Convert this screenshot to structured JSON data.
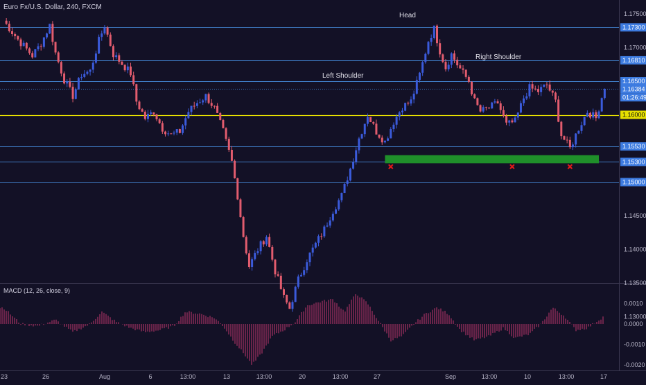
{
  "title": "Euro Fx/U.S. Dollar, 240, FXCM",
  "colors": {
    "background": "#131126",
    "bull": "#3b5bdb",
    "bear": "#e25c6e",
    "level_line": "#3f7bc4",
    "key_level": "#e6e000",
    "support_box": "#1f8f2a",
    "marker": "#e01a1a",
    "macd_hist": "#c2386d",
    "axis_text": "#b8b6c8",
    "price_tag": "#3d7be0"
  },
  "annotations": {
    "head": "Head",
    "left_shoulder": "Left Shoulder",
    "right_shoulder": "Right Shoulder"
  },
  "price_tags": {
    "current_price": "1.16384",
    "countdown": "01:26:49"
  },
  "macd_label": "MACD (12, 26, close, 9)",
  "chart_data": [
    {
      "type": "candlestick",
      "title": "Euro Fx/U.S. Dollar, 240, FXCM",
      "ylim": [
        1.1275,
        1.1765
      ],
      "y_ticks": [
        "1.17500",
        "1.17000",
        "1.16500",
        "1.16000",
        "1.15500",
        "1.15000",
        "1.14500",
        "1.14000",
        "1.13500",
        "1.13000"
      ],
      "x_ticks": [
        "23",
        "26",
        "Aug",
        "6",
        "13:00",
        "13",
        "13:00",
        "20",
        "13:00",
        "27",
        "Sep",
        "13:00",
        "10",
        "13:00",
        "17"
      ],
      "horizontal_levels": [
        {
          "value": 1.173,
          "label": "1.17300",
          "style": "solid"
        },
        {
          "value": 1.1681,
          "label": "1.16810",
          "style": "solid"
        },
        {
          "value": 1.165,
          "label": "1.16500",
          "style": "solid"
        },
        {
          "value": 1.16384,
          "label": "1.16384",
          "style": "dotted"
        },
        {
          "value": 1.16,
          "label": "1.16000",
          "style": "key"
        },
        {
          "value": 1.1553,
          "label": "1.15530",
          "style": "solid"
        },
        {
          "value": 1.153,
          "label": "1.15300",
          "style": "solid"
        },
        {
          "value": 1.15,
          "label": "1.15000",
          "style": "solid"
        }
      ],
      "support_zone": [
        1.1528,
        1.154
      ],
      "support_zone_x": [
        13.2,
        20.6
      ],
      "markers_x": [
        13.4,
        17.6,
        19.6
      ],
      "close_path": [
        [
          0,
          1.174
        ],
        [
          0.5,
          1.1712
        ],
        [
          1,
          1.1688
        ],
        [
          1.3,
          1.1706
        ],
        [
          1.6,
          1.1733
        ],
        [
          1.8,
          1.1692
        ],
        [
          2.1,
          1.1652
        ],
        [
          2.4,
          1.1628
        ],
        [
          2.7,
          1.166
        ],
        [
          3.0,
          1.1665
        ],
        [
          3.3,
          1.171
        ],
        [
          3.5,
          1.1733
        ],
        [
          3.8,
          1.169
        ],
        [
          4.1,
          1.1676
        ],
        [
          4.4,
          1.1662
        ],
        [
          4.6,
          1.162
        ],
        [
          4.9,
          1.1595
        ],
        [
          5.2,
          1.1605
        ],
        [
          5.5,
          1.158
        ],
        [
          5.8,
          1.157
        ],
        [
          6.1,
          1.1575
        ],
        [
          6.4,
          1.1605
        ],
        [
          6.7,
          1.1618
        ],
        [
          7.0,
          1.1628
        ],
        [
          7.3,
          1.161
        ],
        [
          7.6,
          1.1575
        ],
        [
          7.9,
          1.153
        ],
        [
          8.1,
          1.148
        ],
        [
          8.3,
          1.142
        ],
        [
          8.5,
          1.1375
        ],
        [
          8.8,
          1.14
        ],
        [
          9.1,
          1.142
        ],
        [
          9.4,
          1.1368
        ],
        [
          9.7,
          1.1328
        ],
        [
          9.9,
          1.1312
        ],
        [
          10.2,
          1.1355
        ],
        [
          10.5,
          1.1385
        ],
        [
          10.8,
          1.1408
        ],
        [
          11.1,
          1.143
        ],
        [
          11.4,
          1.1458
        ],
        [
          11.7,
          1.148
        ],
        [
          12.0,
          1.152
        ],
        [
          12.3,
          1.1565
        ],
        [
          12.6,
          1.16
        ],
        [
          12.9,
          1.1575
        ],
        [
          13.2,
          1.156
        ],
        [
          13.5,
          1.159
        ],
        [
          13.8,
          1.1612
        ],
        [
          14.1,
          1.162
        ],
        [
          14.4,
          1.166
        ],
        [
          14.7,
          1.171
        ],
        [
          14.9,
          1.1728
        ],
        [
          15.1,
          1.1695
        ],
        [
          15.3,
          1.167
        ],
        [
          15.5,
          1.169
        ],
        [
          15.7,
          1.1675
        ],
        [
          15.9,
          1.1662
        ],
        [
          16.1,
          1.165
        ],
        [
          16.3,
          1.162
        ],
        [
          16.5,
          1.1605
        ],
        [
          16.8,
          1.161
        ],
        [
          17.1,
          1.1618
        ],
        [
          17.4,
          1.1585
        ],
        [
          17.7,
          1.159
        ],
        [
          18.0,
          1.1625
        ],
        [
          18.2,
          1.164
        ],
        [
          18.5,
          1.1635
        ],
        [
          18.8,
          1.1645
        ],
        [
          19.1,
          1.162
        ],
        [
          19.3,
          1.157
        ],
        [
          19.6,
          1.155
        ],
        [
          19.9,
          1.158
        ],
        [
          20.2,
          1.1605
        ],
        [
          20.5,
          1.1595
        ],
        [
          20.8,
          1.1642
        ]
      ]
    },
    {
      "type": "bar",
      "title": "MACD (12, 26, close, 9)",
      "ylim": [
        -0.0022,
        0.0016
      ],
      "y_ticks": [
        "0.0010",
        "0.0000",
        "-0.0010",
        "-0.0020"
      ],
      "path": [
        [
          0,
          0.0008
        ],
        [
          0.6,
          0.0
        ],
        [
          1.2,
          -0.0001
        ],
        [
          1.8,
          0.0002
        ],
        [
          2.4,
          -0.0004
        ],
        [
          3.0,
          0.0
        ],
        [
          3.4,
          0.0006
        ],
        [
          3.9,
          0.0001
        ],
        [
          4.4,
          -0.0002
        ],
        [
          4.9,
          -0.0004
        ],
        [
          5.4,
          -0.0003
        ],
        [
          5.9,
          -0.0001
        ],
        [
          6.3,
          0.0006
        ],
        [
          6.8,
          0.0005
        ],
        [
          7.3,
          0.0003
        ],
        [
          7.6,
          -0.0001
        ],
        [
          8.0,
          -0.0009
        ],
        [
          8.4,
          -0.0016
        ],
        [
          8.6,
          -0.002
        ],
        [
          8.9,
          -0.0015
        ],
        [
          9.3,
          -0.0006
        ],
        [
          9.7,
          -0.0003
        ],
        [
          10.1,
          0.0001
        ],
        [
          10.5,
          0.0009
        ],
        [
          11.0,
          0.0011
        ],
        [
          11.4,
          0.0012
        ],
        [
          11.8,
          0.0006
        ],
        [
          12.2,
          0.0015
        ],
        [
          12.6,
          0.001
        ],
        [
          13.0,
          0.0001
        ],
        [
          13.4,
          -0.0008
        ],
        [
          13.8,
          -0.0006
        ],
        [
          14.2,
          0.0
        ],
        [
          14.6,
          0.0005
        ],
        [
          15.0,
          0.0008
        ],
        [
          15.4,
          0.0005
        ],
        [
          15.8,
          -0.0003
        ],
        [
          16.3,
          -0.0008
        ],
        [
          16.8,
          -0.0006
        ],
        [
          17.3,
          -0.0002
        ],
        [
          17.7,
          -0.0007
        ],
        [
          18.2,
          -0.0005
        ],
        [
          18.6,
          0.0
        ],
        [
          19.0,
          0.0008
        ],
        [
          19.4,
          0.0004
        ],
        [
          19.8,
          -0.0003
        ],
        [
          20.2,
          -0.0002
        ],
        [
          20.8,
          0.0004
        ]
      ]
    }
  ]
}
